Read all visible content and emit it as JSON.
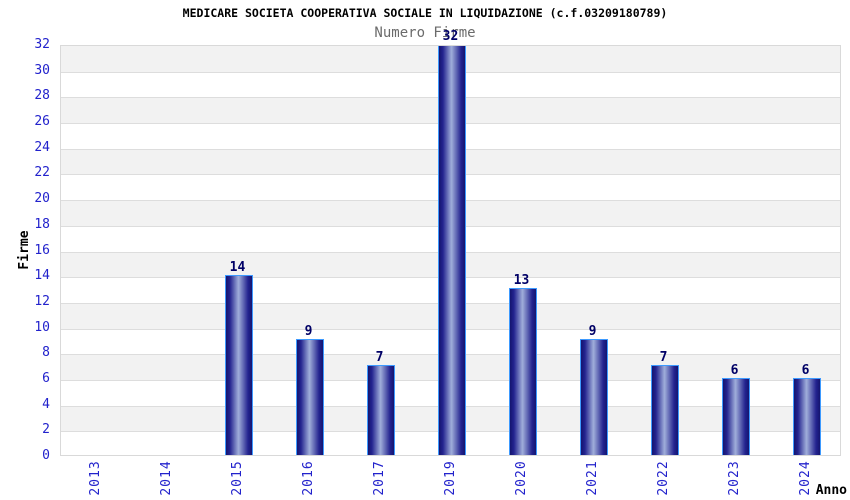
{
  "chart_data": {
    "type": "bar",
    "title": "MEDICARE SOCIETA COOPERATIVA SOCIALE IN LIQUIDAZIONE (c.f.03209180789)",
    "subtitle": "Numero Firme",
    "xlabel": "Anno",
    "ylabel": "Firme",
    "categories": [
      "2013",
      "2014",
      "2015",
      "2016",
      "2017",
      "2019",
      "2020",
      "2021",
      "2022",
      "2023",
      "2024"
    ],
    "values": [
      0,
      0,
      14,
      9,
      7,
      32,
      13,
      9,
      7,
      6,
      6
    ],
    "bar_value_labels": [
      "",
      "",
      "14",
      "9",
      "7",
      "32",
      "13",
      "9",
      "7",
      "6",
      "6"
    ],
    "ylim": [
      0,
      32
    ],
    "ytick_step": 2,
    "yticks": [
      0,
      2,
      4,
      6,
      8,
      10,
      12,
      14,
      16,
      18,
      20,
      22,
      24,
      26,
      28,
      30,
      32
    ],
    "grid": "horizontal gridlines every 2 units with alternating shaded bands",
    "legend": "none",
    "colors": {
      "title_color": "#000000",
      "subtitle_color": "#6b6b6b",
      "axis_tick_color": "#2222cc",
      "value_label_color": "#000066",
      "bar_edge_dark": "#15156f",
      "bar_mid": "#23238f",
      "bar_center_light": "#a0aeda",
      "bar_border": "#3d9aff",
      "band_gray": "#f2f2f2",
      "band_white": "#ffffff",
      "gridline": "#dddddd",
      "plot_border": "#d9d9d9",
      "axis_label_color": "#000000"
    }
  }
}
